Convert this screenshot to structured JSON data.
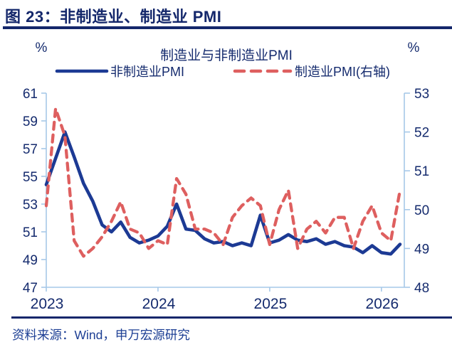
{
  "page": {
    "figure_caption": "图 23：非制造业、制造业 PMI",
    "source_note": "资料来源：Wind，申万宏源研究"
  },
  "colors": {
    "accent_navy": "#14276b",
    "text_navy": "#152b6e",
    "axis_blue": "#a6c8e8",
    "series_blue": "#1c3a94",
    "series_red": "#de5f5f"
  },
  "chart_data": {
    "type": "line",
    "title": "制造业与非制造业PMI",
    "x_start": "2023-01",
    "x_freq": "monthly",
    "x_tick_labels": [
      "2023",
      "2024",
      "2025",
      "2026"
    ],
    "left_axis": {
      "unit": "%",
      "min": 47,
      "max": 61,
      "ticks": [
        61,
        59,
        57,
        55,
        53,
        51,
        49,
        47
      ]
    },
    "right_axis": {
      "unit": "%",
      "min": 48,
      "max": 53,
      "ticks": [
        53,
        52,
        51,
        50,
        49,
        48
      ]
    },
    "legend_position": "top",
    "grid": false,
    "series": [
      {
        "name": "非制造业PMI",
        "axis": "left",
        "color": "#1c3a94",
        "line_style": "solid",
        "values": [
          54.4,
          56.3,
          58.2,
          56.4,
          54.5,
          53.2,
          51.5,
          51.0,
          51.7,
          50.6,
          50.2,
          50.4,
          50.7,
          51.4,
          53.0,
          51.2,
          51.1,
          50.5,
          50.2,
          50.3,
          50.0,
          50.2,
          50.0,
          52.2,
          50.2,
          50.4,
          50.8,
          50.4,
          50.3,
          50.5,
          50.1,
          50.3,
          50.0,
          49.9,
          49.5,
          50.0,
          49.5,
          49.4,
          50.1
        ]
      },
      {
        "name": "制造业PMI(右轴)",
        "axis": "right",
        "color": "#de5f5f",
        "line_style": "dashed",
        "values": [
          50.1,
          52.6,
          51.9,
          49.2,
          48.8,
          49.0,
          49.3,
          49.7,
          50.2,
          49.5,
          49.4,
          49.0,
          49.2,
          49.1,
          50.8,
          50.4,
          49.5,
          49.5,
          49.4,
          49.1,
          49.8,
          50.1,
          50.3,
          50.1,
          49.1,
          50.0,
          50.5,
          49.0,
          49.5,
          49.7,
          49.4,
          49.8,
          49.8,
          49.0,
          49.7,
          50.1,
          49.4,
          49.2,
          50.5
        ]
      }
    ]
  }
}
